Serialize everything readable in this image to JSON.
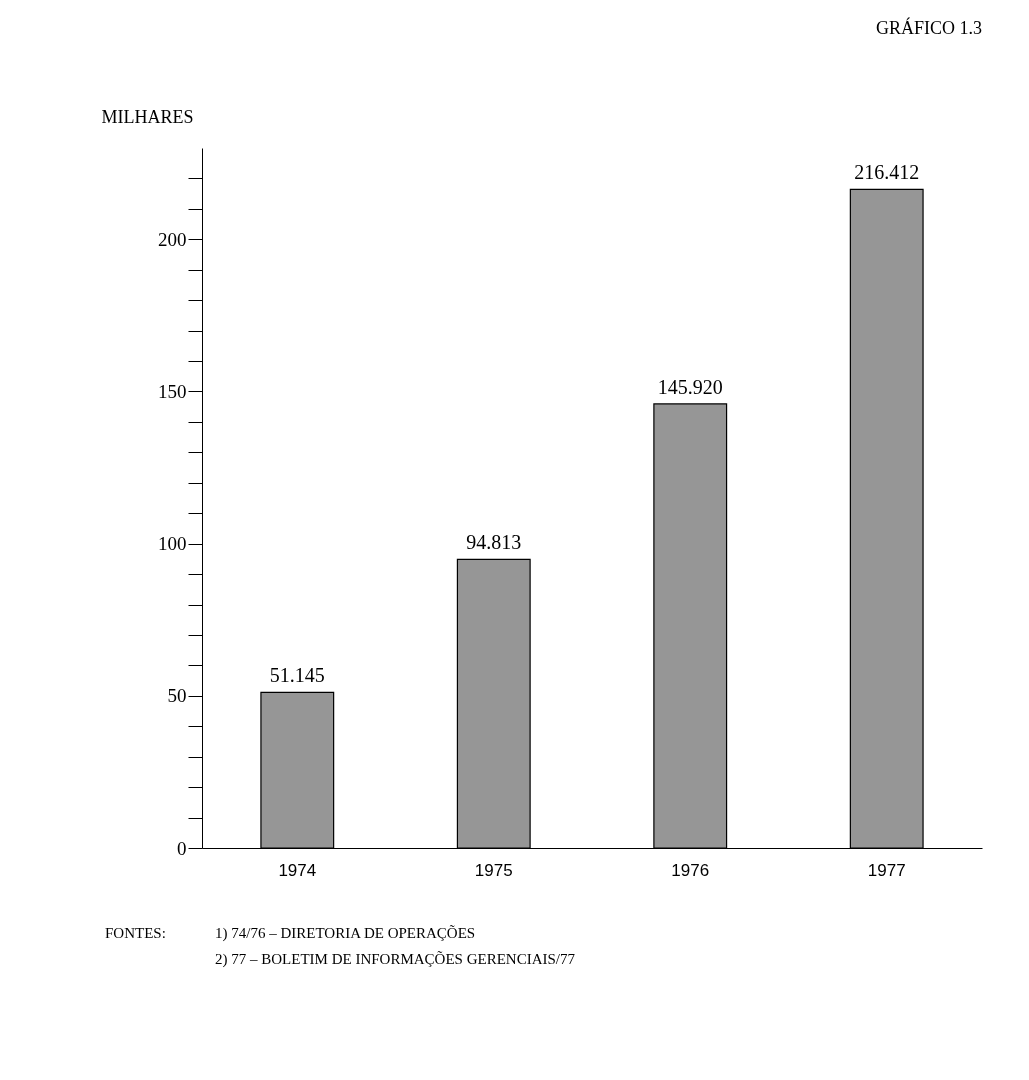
{
  "chart_data": {
    "type": "bar",
    "title": "GRÁFICO 1.3",
    "ylabel": "MILHARES",
    "categories": [
      "1974",
      "1975",
      "1976",
      "1977"
    ],
    "values": [
      51.145,
      94.813,
      145.92,
      216.412
    ],
    "value_labels": [
      "51.145",
      "94.813",
      "145.920",
      "216.412"
    ],
    "color": "#969696",
    "ylim": [
      0,
      230
    ],
    "yticks": [
      0,
      {
        "value": 10,
        "label": null
      },
      {
        "value": 20,
        "label": null
      },
      {
        "value": 30,
        "label": null
      },
      {
        "value": 40,
        "label": null
      },
      50,
      {
        "value": 60,
        "label": null
      },
      {
        "value": 70,
        "label": null
      },
      {
        "value": 80,
        "label": null
      },
      {
        "value": 90,
        "label": null
      },
      100,
      {
        "value": 110,
        "label": null
      },
      {
        "value": 120,
        "label": null
      },
      {
        "value": 130,
        "label": null
      },
      {
        "value": 140,
        "label": null
      },
      150,
      {
        "value": 160,
        "label": null
      },
      {
        "value": 170,
        "label": null
      },
      {
        "value": 180,
        "label": null
      },
      {
        "value": 190,
        "label": null
      },
      200,
      {
        "value": 210,
        "label": null
      },
      {
        "value": 220,
        "label": null
      }
    ],
    "grid": false,
    "annotations": [
      "FONTES:",
      "1) 74/76 – DIRETORIA DE OPERAÇÕES",
      "2) 77 – BOLETIM DE INFORMAÇÕES GERENCIAIS/77"
    ]
  }
}
